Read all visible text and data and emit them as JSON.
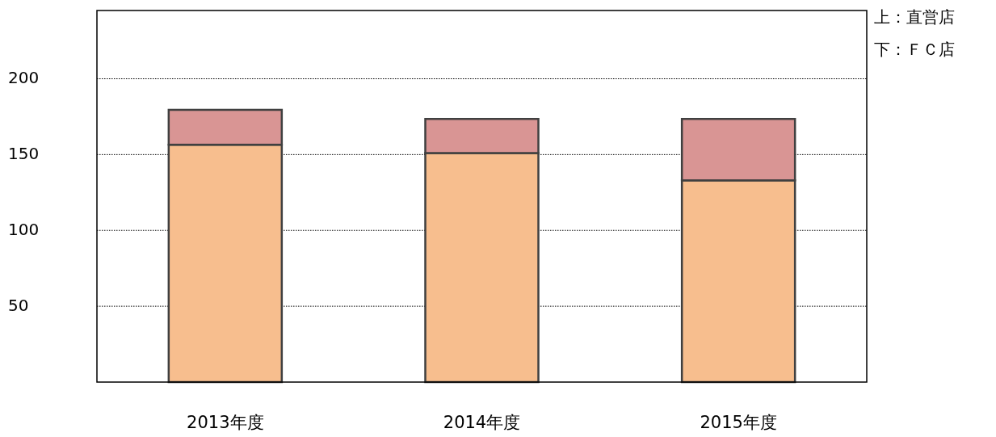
{
  "chart_data": {
    "type": "bar",
    "stacked": true,
    "categories": [
      "2013年度",
      "2014年度",
      "2015年度"
    ],
    "series": [
      {
        "color": "#f7be8e",
        "values": [
          156.5,
          151,
          133
        ]
      },
      {
        "color": "#d99594",
        "values": [
          23,
          22.5,
          40.5
        ]
      }
    ],
    "ylim": [
      0,
      245
    ],
    "yticks": [
      50,
      100,
      150,
      200
    ],
    "grid": "y",
    "annotations": [
      "上：直営店",
      "下：ＦＣ店"
    ]
  }
}
